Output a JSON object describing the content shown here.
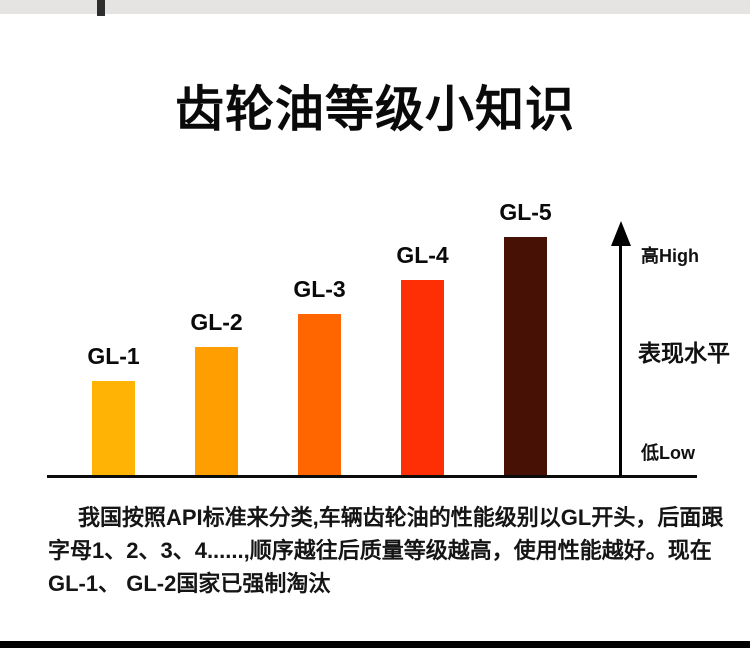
{
  "page": {
    "title": "齿轮油等级小知识"
  },
  "chart_data": {
    "type": "bar",
    "title": "齿轮油等级小知识",
    "categories": [
      "GL-1",
      "GL-2",
      "GL-3",
      "GL-4",
      "GL-5"
    ],
    "values": [
      95,
      129,
      162,
      196,
      239
    ],
    "ylim": [
      0,
      260
    ],
    "grid": false,
    "legend": false,
    "bar_colors": [
      "#FFB405",
      "#FF9E00",
      "#FF6600",
      "#FF2F05",
      "#471106"
    ],
    "axis": {
      "top_label": "高High",
      "title": "表现水平",
      "bottom_label": "低Low"
    }
  },
  "paragraph": {
    "lines": [
      "我国按照API标准来分类,车辆齿轮油的性能级别以GL开头，后面跟",
      "字母1、2、3、4......,顺序越往后质量等级越高，使用性能越好。现在",
      "GL-1、 GL-2国家已强制淘汰"
    ]
  },
  "colors": {
    "background": "#FFFFFF",
    "top_strip": "#E5E4E2",
    "top_strip_marker": "#2E2E2E",
    "text": "#111111",
    "axis_line": "#0B0B0B",
    "bottom_strip": "#020202"
  }
}
